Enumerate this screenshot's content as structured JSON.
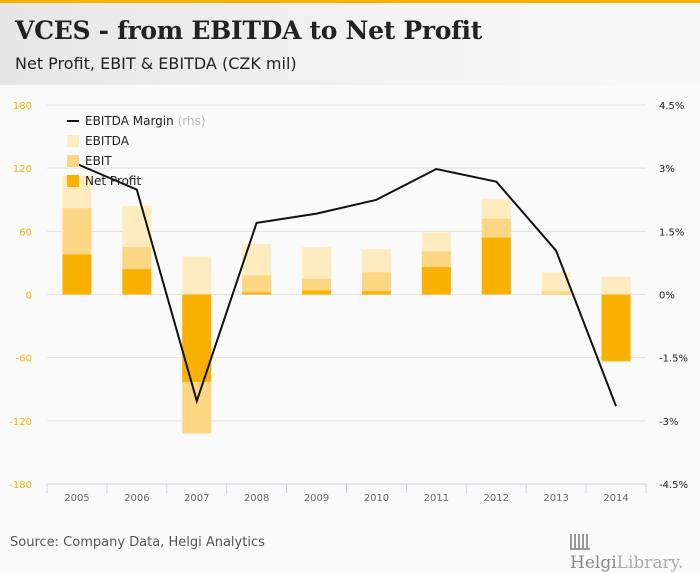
{
  "header": {
    "title": "VCES - from EBITDA to Net Profit",
    "subtitle": "Net Profit, EBIT & EBITDA (CZK mil)"
  },
  "footer": {
    "source": "Source: Company Data, Helgi Analytics",
    "logo_bold": "Helgi",
    "logo_light": "Library."
  },
  "colors": {
    "accent": "#f8b100",
    "ebitda": "#ffebc0",
    "ebit": "#fdd683",
    "net_profit": "#f8b100",
    "margin_line": "#111111",
    "grid": "#e2e2e2"
  },
  "chart_data": {
    "type": "bar",
    "title": "VCES - from EBITDA to Net Profit",
    "subtitle": "Net Profit, EBIT & EBITDA (CZK mil)",
    "categories": [
      "2005",
      "2006",
      "2007",
      "2008",
      "2009",
      "2010",
      "2011",
      "2012",
      "2013",
      "2014"
    ],
    "series": [
      {
        "name": "EBITDA",
        "kind": "bar",
        "values": [
          113,
          84,
          36,
          48,
          45,
          43,
          59,
          91,
          21,
          17
        ]
      },
      {
        "name": "EBIT",
        "kind": "bar",
        "values": [
          82,
          45,
          -132,
          18,
          15,
          21,
          41,
          72,
          3,
          -64
        ]
      },
      {
        "name": "Net Profit",
        "kind": "bar",
        "values": [
          38,
          24,
          -83,
          2,
          4,
          3,
          26,
          54,
          0,
          -63
        ]
      },
      {
        "name": "EBITDA Margin",
        "suffix": "(rhs)",
        "kind": "line",
        "axis": "right",
        "values": [
          3.1,
          2.49,
          -2.53,
          1.7,
          1.92,
          2.25,
          2.98,
          2.68,
          1.04,
          -2.65
        ]
      }
    ],
    "y_left": {
      "ticks": [
        "180",
        "120",
        "60",
        "0",
        "-60",
        "-120",
        "-180"
      ],
      "range": [
        -180,
        180
      ]
    },
    "y_right": {
      "ticks": [
        "4.5%",
        "3%",
        "1.5%",
        "0%",
        "-1.5%",
        "-3%",
        "-4.5%"
      ],
      "range": [
        -4.5,
        4.5
      ]
    },
    "xlabel": "",
    "ylabel": "",
    "grid": true,
    "legend_position": "top-left"
  }
}
